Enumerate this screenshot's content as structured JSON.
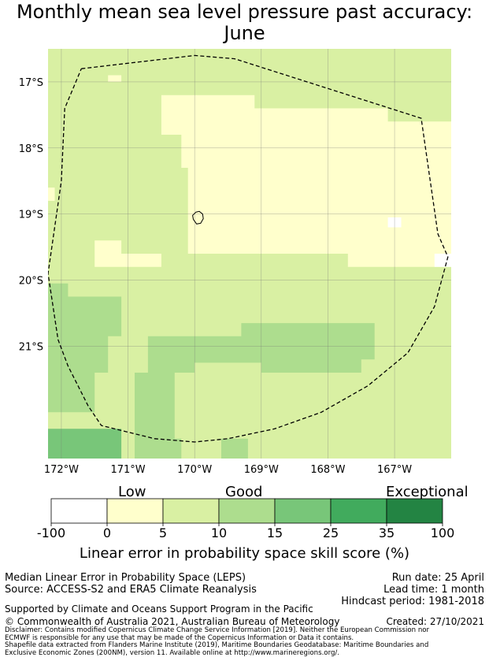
{
  "title_line1": "Monthly mean sea level pressure past accuracy:",
  "title_line2": "June",
  "map": {
    "lon_min": -172.2,
    "lon_max": -166.15,
    "lat_min": -22.7,
    "lat_max": -16.5,
    "lat_ticks": [
      {
        "v": -17,
        "label": "17°S"
      },
      {
        "v": -18,
        "label": "18°S"
      },
      {
        "v": -19,
        "label": "19°S"
      },
      {
        "v": -20,
        "label": "20°S"
      },
      {
        "v": -21,
        "label": "21°S"
      }
    ],
    "lon_ticks": [
      {
        "v": -172,
        "label": "172°W"
      },
      {
        "v": -171,
        "label": "171°W"
      },
      {
        "v": -170,
        "label": "170°W"
      },
      {
        "v": -169,
        "label": "169°W"
      },
      {
        "v": -168,
        "label": "168°W"
      },
      {
        "v": -167,
        "label": "167°W"
      }
    ],
    "background_color": "#d9f0a3",
    "regions": [
      {
        "color": "#ffffcc",
        "points": [
          [
            -170.5,
            -17.2
          ],
          [
            -169.1,
            -17.2
          ],
          [
            -169.1,
            -17.4
          ],
          [
            -167.1,
            -17.4
          ],
          [
            -167.1,
            -17.6
          ],
          [
            -166.15,
            -17.6
          ],
          [
            -166.15,
            -19.8
          ],
          [
            -167.7,
            -19.8
          ],
          [
            -167.7,
            -19.6
          ],
          [
            -170.1,
            -19.6
          ],
          [
            -170.1,
            -18.3
          ],
          [
            -170.2,
            -18.3
          ],
          [
            -170.2,
            -17.8
          ],
          [
            -170.5,
            -17.8
          ]
        ]
      },
      {
        "color": "#ffffcc",
        "points": [
          [
            -171.5,
            -19.4
          ],
          [
            -171.1,
            -19.4
          ],
          [
            -171.1,
            -19.6
          ],
          [
            -170.5,
            -19.6
          ],
          [
            -170.5,
            -19.8
          ],
          [
            -171.5,
            -19.8
          ]
        ]
      },
      {
        "color": "#ffffcc",
        "points": [
          [
            -171.3,
            -16.9
          ],
          [
            -171.1,
            -16.9
          ],
          [
            -171.1,
            -17.0
          ],
          [
            -171.3,
            -17.0
          ]
        ]
      },
      {
        "color": "#ffffcc",
        "points": [
          [
            -172.2,
            -18.6
          ],
          [
            -172.1,
            -18.6
          ],
          [
            -172.1,
            -18.8
          ],
          [
            -172.2,
            -18.8
          ]
        ]
      },
      {
        "color": "#ffffff",
        "points": [
          [
            -167.1,
            -19.05
          ],
          [
            -166.9,
            -19.05
          ],
          [
            -166.9,
            -19.2
          ],
          [
            -167.1,
            -19.2
          ]
        ]
      },
      {
        "color": "#ffffff",
        "points": [
          [
            -166.4,
            -19.6
          ],
          [
            -166.15,
            -19.6
          ],
          [
            -166.15,
            -19.8
          ],
          [
            -166.4,
            -19.8
          ]
        ]
      },
      {
        "color": "#addd8e",
        "points": [
          [
            -172.2,
            -20.05
          ],
          [
            -171.9,
            -20.05
          ],
          [
            -171.9,
            -20.25
          ],
          [
            -171.1,
            -20.25
          ],
          [
            -171.1,
            -20.85
          ],
          [
            -171.3,
            -20.85
          ],
          [
            -171.3,
            -21.4
          ],
          [
            -171.5,
            -21.4
          ],
          [
            -171.5,
            -22.0
          ],
          [
            -172.2,
            -22.0
          ]
        ]
      },
      {
        "color": "#addd8e",
        "points": [
          [
            -170.7,
            -20.85
          ],
          [
            -169.3,
            -20.85
          ],
          [
            -169.3,
            -20.65
          ],
          [
            -167.3,
            -20.65
          ],
          [
            -167.3,
            -21.2
          ],
          [
            -167.5,
            -21.2
          ],
          [
            -167.5,
            -21.4
          ],
          [
            -169.0,
            -21.4
          ],
          [
            -169.0,
            -21.25
          ],
          [
            -170.0,
            -21.25
          ],
          [
            -170.0,
            -21.4
          ],
          [
            -170.3,
            -21.4
          ],
          [
            -170.3,
            -22.4
          ],
          [
            -170.2,
            -22.4
          ],
          [
            -170.2,
            -22.7
          ],
          [
            -170.9,
            -22.7
          ],
          [
            -170.9,
            -21.4
          ],
          [
            -170.7,
            -21.4
          ]
        ]
      },
      {
        "color": "#addd8e",
        "points": [
          [
            -169.6,
            -22.4
          ],
          [
            -169.2,
            -22.4
          ],
          [
            -169.2,
            -22.7
          ],
          [
            -169.6,
            -22.7
          ]
        ]
      },
      {
        "color": "#78c679",
        "points": [
          [
            -172.2,
            -22.25
          ],
          [
            -171.1,
            -22.25
          ],
          [
            -171.1,
            -22.7
          ],
          [
            -172.2,
            -22.7
          ]
        ]
      }
    ],
    "boundary": [
      [
        -171.7,
        -16.8
      ],
      [
        -170.0,
        -16.6
      ],
      [
        -169.4,
        -16.65
      ],
      [
        -166.6,
        -17.55
      ],
      [
        -166.45,
        -18.6
      ],
      [
        -166.35,
        -19.3
      ],
      [
        -166.2,
        -19.65
      ],
      [
        -166.4,
        -20.4
      ],
      [
        -166.8,
        -21.1
      ],
      [
        -167.4,
        -21.6
      ],
      [
        -168.1,
        -22.0
      ],
      [
        -168.8,
        -22.25
      ],
      [
        -169.5,
        -22.4
      ],
      [
        -170.0,
        -22.45
      ],
      [
        -170.6,
        -22.4
      ],
      [
        -171.0,
        -22.3
      ],
      [
        -171.4,
        -22.2
      ],
      [
        -171.6,
        -21.9
      ],
      [
        -171.9,
        -21.3
      ],
      [
        -172.05,
        -20.9
      ],
      [
        -172.2,
        -19.9
      ],
      [
        -172.0,
        -18.5
      ],
      [
        -171.95,
        -17.4
      ],
      [
        -171.7,
        -16.8
      ]
    ],
    "island": [
      [
        -169.98,
        -18.97
      ],
      [
        -169.93,
        -18.96
      ],
      [
        -169.88,
        -19.0
      ],
      [
        -169.87,
        -19.07
      ],
      [
        -169.91,
        -19.14
      ],
      [
        -169.97,
        -19.15
      ],
      [
        -170.02,
        -19.08
      ],
      [
        -170.03,
        -19.02
      ],
      [
        -169.98,
        -18.97
      ]
    ]
  },
  "legend": {
    "categories": [
      "Low",
      "Good",
      "Exceptional"
    ],
    "ticks": [
      "-100",
      "0",
      "5",
      "10",
      "15",
      "25",
      "35",
      "100"
    ],
    "colors": [
      "#ffffff",
      "#ffffcc",
      "#d9f0a3",
      "#addd8e",
      "#78c679",
      "#41ab5d",
      "#238443"
    ],
    "title": "Linear error in probability space skill score (%)"
  },
  "footer": {
    "left_line1": "Median Linear Error in Probability Space (LEPS)",
    "left_line2": "Source: ACCESS-S2 and ERA5 Climate Reanalysis",
    "run_date": "Run date: 25 April",
    "lead_time": "Lead time: 1 month",
    "hindcast": "Hindcast period: 1981-2018",
    "supported": "Supported by Climate and Oceans Support Program in the Pacific",
    "copyright": "© Commonwealth of Australia 2021, Australian Bureau of Meteorology",
    "created": "Created: 27/10/2021",
    "disclaimer1": "Disclaimer: Contains modified Copernicus Climate Change Service Information [2019]. Neither the European Commission nor",
    "disclaimer2": "ECMWF is responsible for any use that may be made of the Copernicus Information or Data it contains.",
    "shapefile1": "Shapefile data extracted from Flanders Marine Institute (2019), Maritime Boundaries Geodatabase: Maritime Boundaries and",
    "shapefile2": "Exclusive Economic Zones (200NM), version 11. Available online at http://www.marineregions.org/."
  }
}
